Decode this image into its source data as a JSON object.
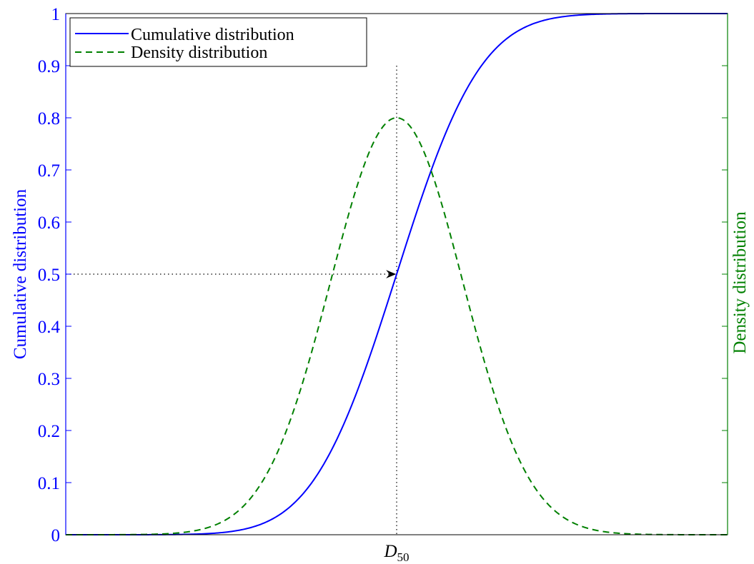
{
  "chart_data": {
    "type": "line",
    "title": "",
    "xlabel_marker": {
      "main": "D",
      "sub": "50"
    },
    "ylabel_left": "Cumulative distribution",
    "ylabel_right": "Density distribution",
    "ylim_left": [
      0,
      1
    ],
    "yticks_left": [
      "0",
      "0.1",
      "0.2",
      "0.3",
      "0.4",
      "0.5",
      "0.6",
      "0.7",
      "0.8",
      "0.9",
      "1"
    ],
    "ylim_right": [
      0,
      1
    ],
    "x_range": [
      -5,
      5
    ],
    "x_center": 0,
    "grid": false,
    "legend_position": "top-left",
    "series": [
      {
        "name": "Cumulative distribution",
        "kind": "normal-cdf",
        "mean": 0,
        "sd": 1,
        "peak": 1,
        "color": "#0000ff",
        "dash": "solid",
        "axis": "left"
      },
      {
        "name": "Density distribution",
        "kind": "normal-pdf",
        "mean": 0,
        "sd": 1,
        "peak": 0.8,
        "color": "#008000",
        "dash": "dashed",
        "axis": "right"
      }
    ],
    "annotations": [
      {
        "type": "dotted-vertical",
        "x": 0,
        "y_top": 0.9
      },
      {
        "type": "dotted-arrow-horizontal",
        "y": 0.5,
        "to_x": 0
      }
    ],
    "colors": {
      "left_axis": "#0000ff",
      "right_axis": "#008000",
      "frame": "#000000"
    }
  }
}
